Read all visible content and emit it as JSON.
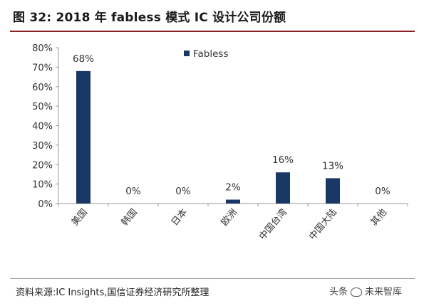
{
  "figure": {
    "title": "图 32:  2018 年 fabless 模式 IC 设计公司份额",
    "source": "资料来源:IC Insights,国信证券经济研究所整理",
    "watermark_left": "头条",
    "watermark_right": "未来智库"
  },
  "colors": {
    "bar": "#1a3866",
    "title_rule": "#8a1f24",
    "axis": "#9a9a9a"
  },
  "chart_data": {
    "type": "bar",
    "title": "",
    "xlabel": "",
    "ylabel": "",
    "categories": [
      "美国",
      "韩国",
      "日本",
      "欧洲",
      "中国台湾",
      "中国大陆",
      "其他"
    ],
    "series": [
      {
        "name": "Fabless",
        "values": [
          68,
          0,
          0,
          2,
          16,
          13,
          0
        ],
        "labels": [
          "68%",
          "0%",
          "0%",
          "2%",
          "16%",
          "13%",
          "0%"
        ]
      }
    ],
    "ylim": [
      0,
      80
    ],
    "yticks": [
      0,
      10,
      20,
      30,
      40,
      50,
      60,
      70,
      80
    ],
    "ytick_labels": [
      "0%",
      "10%",
      "20%",
      "30%",
      "40%",
      "50%",
      "60%",
      "70%",
      "80%"
    ],
    "grid": false,
    "legend_position": "top-center"
  }
}
